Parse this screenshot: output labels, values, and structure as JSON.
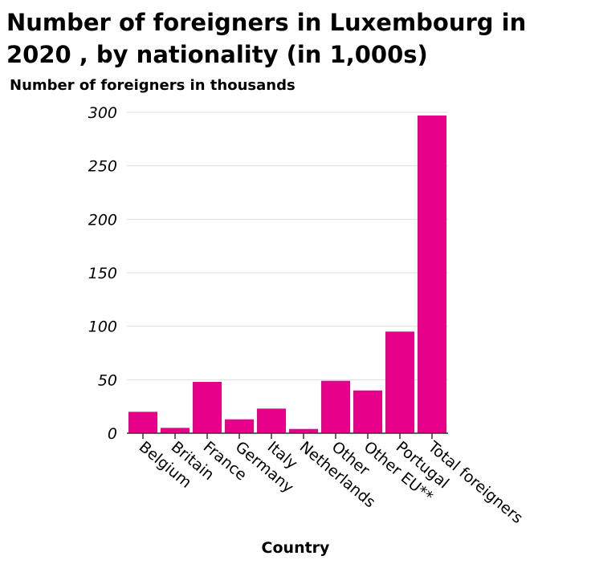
{
  "chart_data": {
    "type": "bar",
    "title": "Number of foreigners in Luxembourg in 2020 , by nationality (in 1,000s)",
    "ylabel": "Number of foreigners in thousands",
    "xlabel": "Country",
    "categories": [
      "Belgium",
      "Britain",
      "France",
      "Germany",
      "Italy",
      "Netherlands",
      "Other",
      "Other EU**",
      "Portugal",
      "Total foreigners"
    ],
    "values": [
      20,
      5,
      48,
      13,
      23,
      4,
      49,
      40,
      95,
      297
    ],
    "ylim": [
      0,
      300
    ],
    "yticks": [
      "0",
      "50",
      "100",
      "150",
      "200",
      "250",
      "300"
    ],
    "grid": "horizontal",
    "bar_color": "#e6008a"
  }
}
